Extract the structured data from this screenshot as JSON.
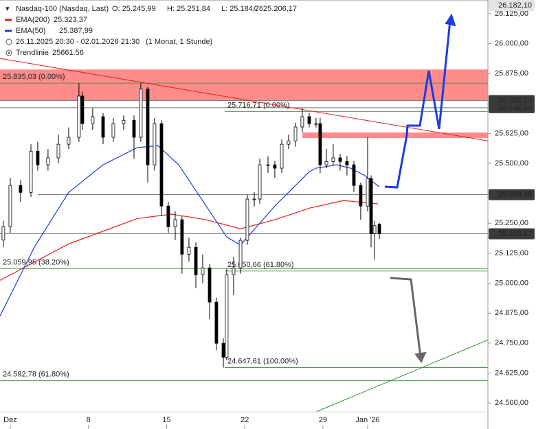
{
  "chart_data": {
    "type": "candlestick",
    "header": {
      "name": "Nasdaq-100 (Nasdaq, Last)",
      "ohlc": [
        "O: 25.245,99",
        "H: 25.251,84",
        "L: 25.184,76",
        "C: 25.206,17"
      ],
      "range": "26.11.2025 20:30 - 02.01.2026 21:30",
      "interval": "(1 Monat, 1 Stunde)",
      "trendline_name": "Trendlinie",
      "trendline_value": "25661.56"
    },
    "x": [
      0.38,
      1.0,
      1.92,
      2.85,
      3.46,
      4.38,
      5.31,
      6.23,
      7.15,
      7.46,
      8.38,
      9.31,
      10.23,
      11.15,
      12.08,
      12.69,
      13.31,
      13.92,
      14.54,
      15.15,
      15.77,
      16.38,
      17.0,
      17.62,
      18.23,
      18.85,
      19.46,
      20.08,
      20.38,
      21.0,
      21.62,
      22.23,
      22.85,
      23.34,
      24.08,
      24.69,
      25.31,
      25.92,
      26.54,
      27.15,
      27.77,
      28.38,
      28.75,
      29.31,
      29.92,
      30.54,
      31.15,
      31.77,
      32.38,
      33.0,
      33.31,
      33.62,
      34.05
    ],
    "open": [
      25180,
      25236,
      25408,
      25379,
      25551,
      25494,
      25523,
      25580,
      25609,
      25781,
      25666,
      25695,
      25609,
      25666,
      25680,
      25609,
      25810,
      25494,
      25666,
      25322,
      25236,
      25265,
      25121,
      25150,
      25035,
      25064,
      24921,
      24749,
      24691,
      25035,
      25064,
      25179,
      25351,
      25351,
      25494,
      25494,
      25480,
      25580,
      25594,
      25652,
      25695,
      25666,
      25666,
      25494,
      25508,
      25523,
      25508,
      25494,
      25408,
      25322,
      25437,
      25207,
      25245.99
    ],
    "high": [
      25260,
      25440,
      25430,
      25580,
      25590,
      25560,
      25620,
      25650,
      25835,
      25800,
      25730,
      25710,
      25690,
      25700,
      25700,
      25835,
      25820,
      25690,
      25680,
      25340,
      25300,
      25280,
      25190,
      25170,
      25120,
      25080,
      24940,
      24770,
      25060,
      25110,
      25190,
      25370,
      25380,
      25520,
      25530,
      25510,
      25600,
      25620,
      25670,
      25730,
      25710,
      25690,
      25690,
      25560,
      25580,
      25540,
      25530,
      25510,
      25420,
      25609,
      25450,
      25260,
      25251.84
    ],
    "low": [
      25150,
      25210,
      25340,
      25360,
      25470,
      25470,
      25500,
      25560,
      25590,
      25640,
      25640,
      25580,
      25590,
      25640,
      25520,
      25590,
      25420,
      25470,
      25280,
      25210,
      25180,
      25040,
      25090,
      24980,
      25000,
      24850,
      24720,
      24647.61,
      24680,
      24950,
      25040,
      25160,
      25320,
      25330,
      25460,
      25440,
      25460,
      25560,
      25570,
      25630,
      25650,
      25650,
      25460,
      25480,
      25490,
      25470,
      25450,
      25380,
      25265,
      25300,
      25150,
      25098,
      25184.76
    ],
    "close": [
      25236,
      25408,
      25379,
      25551,
      25494,
      25523,
      25580,
      25609,
      25781,
      25666,
      25695,
      25609,
      25666,
      25680,
      25609,
      25810,
      25494,
      25666,
      25322,
      25236,
      25265,
      25121,
      25150,
      25035,
      25064,
      24921,
      24749,
      24691,
      25035,
      25064,
      25179,
      25351,
      25351,
      25494,
      25494,
      25480,
      25580,
      25594,
      25652,
      25695,
      25666,
      25666,
      25494,
      25508,
      25523,
      25508,
      25494,
      25408,
      25322,
      25437,
      25207,
      25240,
      25206.17
    ],
    "series": [
      {
        "name": "EMA(200)",
        "legend_value": "25.323,37",
        "color": "#e0201b",
        "x": [
          0.08,
          6.23,
          12.38,
          15.46,
          18.54,
          21.62,
          24.69,
          27.77,
          30.85,
          33.92
        ],
        "values": [
          25012,
          25164,
          25270,
          25288,
          25265,
          25227,
          25265,
          25313,
          25345,
          25331
        ]
      },
      {
        "name": "EMA(50)",
        "legend_value": "25.387,99",
        "color": "#1a3ce0",
        "x": [
          0.08,
          3.15,
          6.23,
          9.31,
          12.38,
          14.23,
          16.08,
          18.54,
          20.38,
          21.62,
          24.69,
          26.54,
          27.77,
          28.38,
          30.23,
          31.46,
          32.69,
          34.05
        ],
        "values": [
          24863,
          25150,
          25379,
          25494,
          25566,
          25574,
          25494,
          25322,
          25193,
          25159,
          25322,
          25408,
          25465,
          25480,
          25494,
          25480,
          25451,
          25402
        ]
      }
    ],
    "trendlines": [
      {
        "color": "#e0201b",
        "x": [
          0.08,
          43.77
        ],
        "values": [
          25938,
          25594
        ]
      },
      {
        "color": "#2e8b2e",
        "x": [
          28.38,
          43.77
        ],
        "values": [
          24463,
          24763
        ]
      }
    ],
    "zones": [
      {
        "from": 0.08,
        "low": 25764,
        "high": 25892
      },
      {
        "from": 27.15,
        "low": 25606,
        "high": 25629
      }
    ],
    "fib_levels": [
      {
        "value": 25835.03,
        "label": "25.835,03 (0.00%)",
        "from": 0.08
      },
      {
        "value": 25716.71,
        "label": "25.716,71 (0.00%)",
        "from": 20.2
      },
      {
        "value": 25059.95,
        "label": "25.059,95 (38.20%)",
        "from": 0.08
      },
      {
        "value": 25050.66,
        "label": "25.050,66 (61.80%)",
        "from": 20.2
      },
      {
        "value": 24647.61,
        "label": "24.647,61 (100.00%)",
        "from": 20.2
      },
      {
        "value": 24592.78,
        "label": "24.592,78 (61.80%)",
        "from": 0.08
      }
    ],
    "price_labels": [
      {
        "value": 26182.1,
        "label": "26.182,10",
        "from": 0.08,
        "style": "light"
      },
      {
        "value": 25732.39,
        "label": "25.732,39",
        "from": 0.08,
        "style": "dark"
      },
      {
        "value": 25762.23,
        "label": "25.762,23",
        "from": 0.08,
        "style": "dark"
      },
      {
        "value": 25369.36,
        "label": "25.369,36",
        "from": 3.46,
        "style": "dark"
      },
      {
        "value": 25206.17,
        "label": "25.206,17",
        "from": 0.08,
        "style": "dark"
      }
    ],
    "xlim": [
      0.08,
      43.77
    ],
    "xticks": [
      {
        "value": 1,
        "label": "Dez"
      },
      8,
      15,
      22,
      29,
      {
        "value": 33,
        "label": "Jan '26"
      }
    ],
    "ylim": [
      24463,
      26182
    ],
    "yticks": [
      {
        "value": 24500,
        "label": "24.500,00"
      },
      {
        "value": 24625,
        "label": "24.625,00"
      },
      {
        "value": 24750,
        "label": "24.750,00"
      },
      {
        "value": 24875,
        "label": "24.875,00"
      },
      {
        "value": 25000,
        "label": "25.000,00"
      },
      {
        "value": 25125,
        "label": "25.125,00"
      },
      {
        "value": 25250,
        "label": "25.250,00"
      },
      {
        "value": 25375,
        "label": "25.375,00"
      },
      {
        "value": 25500,
        "label": "25.500,00"
      },
      {
        "value": 25625,
        "label": "25.625,00"
      },
      {
        "value": 25750,
        "label": "25.750,00"
      },
      {
        "value": 25875,
        "label": "25.875,00"
      },
      {
        "value": 26000,
        "label": "26.000,00"
      },
      {
        "value": 26125,
        "label": "26.125,00"
      }
    ]
  }
}
